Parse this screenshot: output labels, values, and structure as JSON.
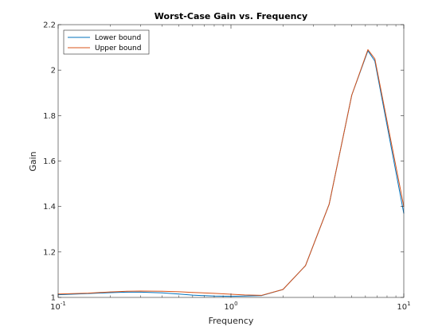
{
  "chart_data": {
    "type": "line",
    "title": "Worst-Case Gain vs. Frequency",
    "xlabel": "Frequency",
    "ylabel": "Gain",
    "x_scale": "log",
    "xlim": [
      0.1,
      10
    ],
    "ylim": [
      1,
      2.2
    ],
    "x_ticks": [
      {
        "value": 0.1,
        "base": "10",
        "exp": "-1"
      },
      {
        "value": 1,
        "base": "10",
        "exp": "0"
      },
      {
        "value": 10,
        "base": "10",
        "exp": "1"
      }
    ],
    "y_ticks": [
      "1",
      "1.2",
      "1.4",
      "1.6",
      "1.8",
      "2",
      "2.2"
    ],
    "grid": false,
    "legend_position": "top-left",
    "series": [
      {
        "name": "Lower bound",
        "color": "#0072BD",
        "x": [
          0.1,
          0.15,
          0.2,
          0.25,
          0.3,
          0.4,
          0.5,
          0.6,
          0.8,
          1.0,
          1.2,
          1.5,
          2.0,
          2.7,
          3.7,
          5.0,
          6.2,
          6.8,
          10
        ],
        "y": [
          1.012,
          1.017,
          1.021,
          1.023,
          1.023,
          1.02,
          1.015,
          1.01,
          1.006,
          1.005,
          1.006,
          1.008,
          1.035,
          1.14,
          1.41,
          1.89,
          2.085,
          2.04,
          1.37
        ]
      },
      {
        "name": "Upper bound",
        "color": "#D95319",
        "x": [
          0.1,
          0.15,
          0.2,
          0.25,
          0.3,
          0.4,
          0.5,
          0.6,
          0.8,
          1.0,
          1.2,
          1.5,
          2.0,
          2.7,
          3.7,
          5.0,
          6.2,
          6.8,
          10
        ],
        "y": [
          1.015,
          1.019,
          1.024,
          1.027,
          1.028,
          1.027,
          1.025,
          1.022,
          1.018,
          1.014,
          1.011,
          1.009,
          1.035,
          1.14,
          1.41,
          1.89,
          2.09,
          2.05,
          1.4
        ]
      }
    ]
  }
}
